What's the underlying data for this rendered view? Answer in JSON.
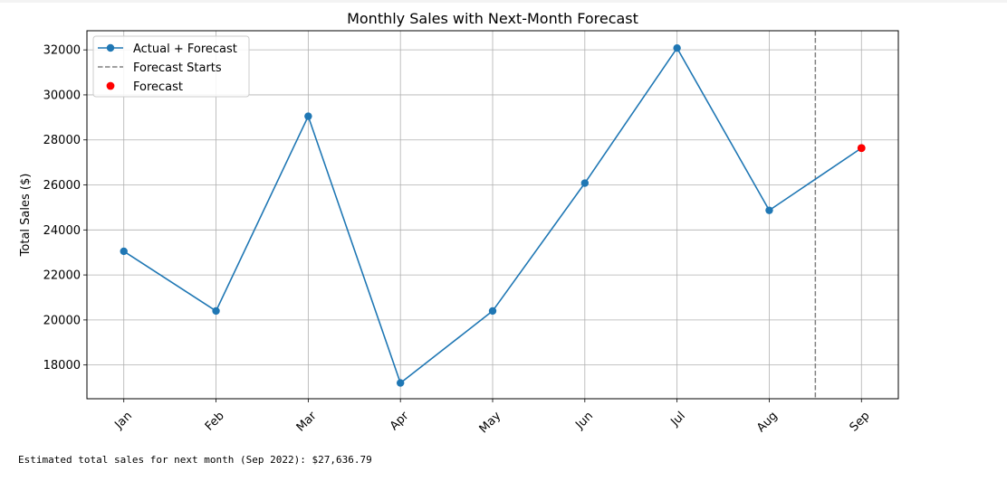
{
  "chart_data": {
    "type": "line",
    "title": "Monthly Sales with Next-Month Forecast",
    "xlabel": "",
    "ylabel": "Total Sales ($)",
    "categories": [
      "Jan",
      "Feb",
      "Mar",
      "Apr",
      "May",
      "Jun",
      "Jul",
      "Aug",
      "Sep"
    ],
    "series": [
      {
        "name": "Actual + Forecast",
        "values": [
          23050,
          20400,
          29050,
          17200,
          20400,
          26080,
          32080,
          24870,
          27636.79
        ],
        "color": "#1f77b4",
        "marker": "circle"
      }
    ],
    "forecast_point": {
      "name": "Forecast",
      "category": "Sep",
      "value": 27636.79,
      "color": "#ff0000"
    },
    "forecast_start": {
      "name": "Forecast Starts",
      "between": [
        "Aug",
        "Sep"
      ],
      "style": "dashed",
      "color": "#808080"
    },
    "yticks": [
      18000,
      20000,
      22000,
      24000,
      26000,
      28000,
      30000,
      32000
    ],
    "ylim": [
      16500,
      32850
    ],
    "grid": true,
    "legend_position": "top-left",
    "xtick_rotation": 45
  },
  "output": {
    "text": "Estimated total sales for next month (Sep 2022): $27,636.79"
  }
}
